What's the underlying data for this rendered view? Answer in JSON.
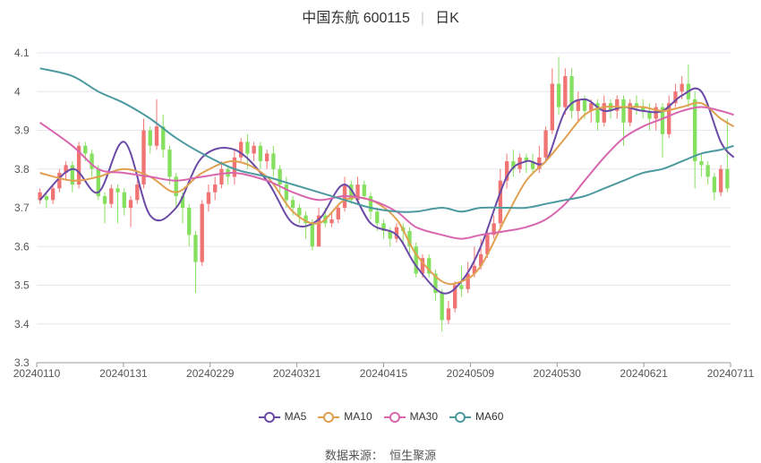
{
  "header": {
    "stock_name": "中国东航 600115",
    "period": "日K"
  },
  "source": {
    "label": "数据来源：",
    "value": "恒生聚源"
  },
  "colors": {
    "up": "#f07474",
    "down": "#86e05f",
    "MA5": "#6a4aa6",
    "MA10": "#e0a050",
    "MA30": "#d865ae",
    "MA60": "#4c9aa0",
    "grid": "#e6e6f0"
  },
  "chart_data": {
    "type": "candlestick",
    "ylim": [
      3.3,
      4.1
    ],
    "yticks": [
      "3.3",
      "3.4",
      "3.5",
      "3.6",
      "3.7",
      "3.8",
      "3.9",
      "4",
      "4.1"
    ],
    "xticks": [
      "20240110",
      "20240131",
      "20240229",
      "20240321",
      "20240415",
      "20240509",
      "20240530",
      "20240621",
      "20240711"
    ],
    "legend": [
      "MA5",
      "MA10",
      "MA30",
      "MA60"
    ],
    "candles": [
      [
        3.72,
        3.74,
        3.71,
        3.75
      ],
      [
        3.73,
        3.72,
        3.7,
        3.74
      ],
      [
        3.72,
        3.75,
        3.71,
        3.76
      ],
      [
        3.75,
        3.79,
        3.74,
        3.8
      ],
      [
        3.79,
        3.81,
        3.77,
        3.82
      ],
      [
        3.81,
        3.76,
        3.74,
        3.82
      ],
      [
        3.76,
        3.86,
        3.75,
        3.87
      ],
      [
        3.86,
        3.84,
        3.82,
        3.87
      ],
      [
        3.84,
        3.8,
        3.78,
        3.85
      ],
      [
        3.8,
        3.73,
        3.72,
        3.81
      ],
      [
        3.73,
        3.71,
        3.66,
        3.74
      ],
      [
        3.71,
        3.75,
        3.7,
        3.76
      ],
      [
        3.75,
        3.74,
        3.66,
        3.76
      ],
      [
        3.74,
        3.7,
        3.68,
        3.75
      ],
      [
        3.7,
        3.72,
        3.65,
        3.73
      ],
      [
        3.72,
        3.76,
        3.71,
        3.77
      ],
      [
        3.76,
        3.9,
        3.75,
        3.93
      ],
      [
        3.9,
        3.86,
        3.84,
        3.91
      ],
      [
        3.86,
        3.91,
        3.85,
        3.98
      ],
      [
        3.91,
        3.85,
        3.83,
        3.94
      ],
      [
        3.85,
        3.78,
        3.76,
        3.86
      ],
      [
        3.78,
        3.73,
        3.7,
        3.79
      ],
      [
        3.73,
        3.7,
        3.66,
        3.74
      ],
      [
        3.7,
        3.63,
        3.6,
        3.71
      ],
      [
        3.63,
        3.56,
        3.48,
        3.64
      ],
      [
        3.56,
        3.71,
        3.55,
        3.72
      ],
      [
        3.71,
        3.74,
        3.69,
        3.76
      ],
      [
        3.74,
        3.76,
        3.72,
        3.78
      ],
      [
        3.76,
        3.8,
        3.75,
        3.82
      ],
      [
        3.8,
        3.78,
        3.76,
        3.81
      ],
      [
        3.78,
        3.83,
        3.76,
        3.85
      ],
      [
        3.83,
        3.87,
        3.82,
        3.88
      ],
      [
        3.87,
        3.84,
        3.8,
        3.89
      ],
      [
        3.84,
        3.86,
        3.82,
        3.87
      ],
      [
        3.86,
        3.82,
        3.8,
        3.87
      ],
      [
        3.82,
        3.84,
        3.8,
        3.85
      ],
      [
        3.84,
        3.8,
        3.78,
        3.86
      ],
      [
        3.8,
        3.76,
        3.74,
        3.81
      ],
      [
        3.76,
        3.72,
        3.7,
        3.78
      ],
      [
        3.72,
        3.7,
        3.68,
        3.73
      ],
      [
        3.7,
        3.68,
        3.66,
        3.71
      ],
      [
        3.68,
        3.66,
        3.62,
        3.69
      ],
      [
        3.66,
        3.6,
        3.59,
        3.67
      ],
      [
        3.6,
        3.68,
        3.6,
        3.7
      ],
      [
        3.68,
        3.66,
        3.65,
        3.7
      ],
      [
        3.66,
        3.67,
        3.65,
        3.69
      ],
      [
        3.67,
        3.7,
        3.66,
        3.71
      ],
      [
        3.7,
        3.76,
        3.69,
        3.78
      ],
      [
        3.76,
        3.72,
        3.71,
        3.77
      ],
      [
        3.72,
        3.76,
        3.71,
        3.78
      ],
      [
        3.76,
        3.73,
        3.72,
        3.77
      ],
      [
        3.73,
        3.69,
        3.67,
        3.74
      ],
      [
        3.69,
        3.66,
        3.64,
        3.7
      ],
      [
        3.66,
        3.64,
        3.62,
        3.67
      ],
      [
        3.64,
        3.62,
        3.6,
        3.65
      ],
      [
        3.62,
        3.65,
        3.61,
        3.66
      ],
      [
        3.65,
        3.64,
        3.61,
        3.66
      ],
      [
        3.64,
        3.6,
        3.58,
        3.65
      ],
      [
        3.6,
        3.53,
        3.52,
        3.61
      ],
      [
        3.53,
        3.57,
        3.52,
        3.58
      ],
      [
        3.57,
        3.53,
        3.52,
        3.58
      ],
      [
        3.53,
        3.48,
        3.46,
        3.54
      ],
      [
        3.48,
        3.41,
        3.38,
        3.49
      ],
      [
        3.41,
        3.44,
        3.4,
        3.46
      ],
      [
        3.44,
        3.5,
        3.43,
        3.51
      ],
      [
        3.5,
        3.49,
        3.47,
        3.55
      ],
      [
        3.49,
        3.53,
        3.48,
        3.56
      ],
      [
        3.53,
        3.55,
        3.52,
        3.6
      ],
      [
        3.55,
        3.58,
        3.54,
        3.62
      ],
      [
        3.58,
        3.63,
        3.57,
        3.65
      ],
      [
        3.63,
        3.66,
        3.62,
        3.68
      ],
      [
        3.66,
        3.77,
        3.65,
        3.8
      ],
      [
        3.77,
        3.82,
        3.75,
        3.84
      ],
      [
        3.82,
        3.8,
        3.78,
        3.85
      ],
      [
        3.8,
        3.83,
        3.79,
        3.84
      ],
      [
        3.83,
        3.82,
        3.79,
        3.84
      ],
      [
        3.82,
        3.8,
        3.79,
        3.84
      ],
      [
        3.8,
        3.83,
        3.79,
        3.86
      ],
      [
        3.83,
        3.9,
        3.82,
        3.91
      ],
      [
        3.9,
        4.02,
        3.89,
        4.06
      ],
      [
        4.02,
        3.96,
        3.94,
        4.09
      ],
      [
        3.96,
        4.04,
        3.94,
        4.06
      ],
      [
        4.04,
        3.95,
        3.93,
        4.06
      ],
      [
        3.95,
        3.98,
        3.92,
        4.0
      ],
      [
        3.98,
        3.95,
        3.93,
        3.99
      ],
      [
        3.95,
        3.97,
        3.92,
        3.98
      ],
      [
        3.97,
        3.92,
        3.9,
        3.98
      ],
      [
        3.92,
        3.97,
        3.91,
        3.99
      ],
      [
        3.97,
        3.95,
        3.93,
        3.98
      ],
      [
        3.95,
        3.98,
        3.93,
        3.99
      ],
      [
        3.98,
        3.92,
        3.86,
        3.99
      ],
      [
        3.92,
        3.97,
        3.91,
        3.98
      ],
      [
        3.97,
        3.96,
        3.94,
        3.99
      ],
      [
        3.96,
        3.95,
        3.93,
        3.98
      ],
      [
        3.95,
        3.93,
        3.9,
        3.97
      ],
      [
        3.93,
        3.96,
        3.9,
        3.97
      ],
      [
        3.96,
        3.89,
        3.83,
        3.97
      ],
      [
        3.89,
        3.97,
        3.88,
        3.99
      ],
      [
        3.97,
        4.0,
        3.96,
        4.02
      ],
      [
        4.0,
        4.02,
        3.98,
        4.04
      ],
      [
        4.02,
        3.98,
        3.96,
        4.07
      ],
      [
        3.98,
        3.82,
        3.75,
        4.0
      ],
      [
        3.82,
        3.81,
        3.78,
        3.84
      ],
      [
        3.81,
        3.78,
        3.76,
        3.82
      ],
      [
        3.78,
        3.74,
        3.72,
        3.79
      ],
      [
        3.74,
        3.8,
        3.73,
        3.81
      ],
      [
        3.8,
        3.75,
        3.74,
        3.93
      ]
    ],
    "series": [
      {
        "name": "MA5",
        "values": [
          [
            0,
            3.72
          ],
          [
            5,
            3.8
          ],
          [
            9,
            3.74
          ],
          [
            13,
            3.87
          ],
          [
            17,
            3.68
          ],
          [
            21,
            3.7
          ],
          [
            25,
            3.83
          ],
          [
            30,
            3.85
          ],
          [
            35,
            3.77
          ],
          [
            39,
            3.66
          ],
          [
            43,
            3.67
          ],
          [
            47,
            3.76
          ],
          [
            51,
            3.66
          ],
          [
            55,
            3.63
          ],
          [
            58,
            3.55
          ],
          [
            62,
            3.48
          ],
          [
            65,
            3.51
          ],
          [
            68,
            3.6
          ],
          [
            72,
            3.78
          ],
          [
            75,
            3.82
          ],
          [
            78,
            3.82
          ],
          [
            81,
            3.95
          ],
          [
            84,
            3.98
          ],
          [
            87,
            3.95
          ],
          [
            90,
            3.96
          ],
          [
            93,
            3.95
          ],
          [
            96,
            3.95
          ],
          [
            99,
            3.99
          ],
          [
            102,
            4.0
          ],
          [
            105,
            3.87
          ],
          [
            107,
            3.83
          ]
        ]
      },
      {
        "name": "MA10",
        "values": [
          [
            0,
            3.79
          ],
          [
            5,
            3.77
          ],
          [
            9,
            3.78
          ],
          [
            13,
            3.8
          ],
          [
            17,
            3.78
          ],
          [
            21,
            3.74
          ],
          [
            25,
            3.79
          ],
          [
            30,
            3.82
          ],
          [
            35,
            3.78
          ],
          [
            39,
            3.69
          ],
          [
            43,
            3.66
          ],
          [
            47,
            3.72
          ],
          [
            51,
            3.72
          ],
          [
            55,
            3.67
          ],
          [
            58,
            3.58
          ],
          [
            62,
            3.51
          ],
          [
            65,
            3.51
          ],
          [
            68,
            3.55
          ],
          [
            72,
            3.68
          ],
          [
            75,
            3.77
          ],
          [
            78,
            3.82
          ],
          [
            81,
            3.88
          ],
          [
            84,
            3.94
          ],
          [
            87,
            3.96
          ],
          [
            90,
            3.96
          ],
          [
            93,
            3.96
          ],
          [
            96,
            3.95
          ],
          [
            99,
            3.96
          ],
          [
            102,
            3.97
          ],
          [
            105,
            3.93
          ],
          [
            107,
            3.91
          ]
        ]
      },
      {
        "name": "MA30",
        "values": [
          [
            0,
            3.92
          ],
          [
            5,
            3.86
          ],
          [
            9,
            3.8
          ],
          [
            13,
            3.79
          ],
          [
            17,
            3.78
          ],
          [
            21,
            3.77
          ],
          [
            25,
            3.78
          ],
          [
            30,
            3.79
          ],
          [
            35,
            3.77
          ],
          [
            39,
            3.74
          ],
          [
            43,
            3.72
          ],
          [
            47,
            3.73
          ],
          [
            51,
            3.72
          ],
          [
            55,
            3.69
          ],
          [
            58,
            3.65
          ],
          [
            62,
            3.63
          ],
          [
            65,
            3.62
          ],
          [
            68,
            3.63
          ],
          [
            72,
            3.64
          ],
          [
            75,
            3.65
          ],
          [
            78,
            3.67
          ],
          [
            81,
            3.71
          ],
          [
            84,
            3.77
          ],
          [
            87,
            3.83
          ],
          [
            90,
            3.88
          ],
          [
            93,
            3.91
          ],
          [
            96,
            3.93
          ],
          [
            99,
            3.95
          ],
          [
            102,
            3.96
          ],
          [
            105,
            3.95
          ],
          [
            107,
            3.94
          ]
        ]
      },
      {
        "name": "MA60",
        "values": [
          [
            0,
            4.06
          ],
          [
            5,
            4.04
          ],
          [
            9,
            4.0
          ],
          [
            13,
            3.97
          ],
          [
            17,
            3.93
          ],
          [
            21,
            3.88
          ],
          [
            25,
            3.84
          ],
          [
            30,
            3.8
          ],
          [
            35,
            3.78
          ],
          [
            39,
            3.76
          ],
          [
            43,
            3.74
          ],
          [
            47,
            3.72
          ],
          [
            51,
            3.7
          ],
          [
            55,
            3.69
          ],
          [
            58,
            3.69
          ],
          [
            62,
            3.7
          ],
          [
            65,
            3.69
          ],
          [
            68,
            3.7
          ],
          [
            72,
            3.7
          ],
          [
            75,
            3.7
          ],
          [
            78,
            3.71
          ],
          [
            81,
            3.72
          ],
          [
            84,
            3.73
          ],
          [
            87,
            3.75
          ],
          [
            90,
            3.77
          ],
          [
            93,
            3.79
          ],
          [
            96,
            3.8
          ],
          [
            99,
            3.82
          ],
          [
            102,
            3.84
          ],
          [
            105,
            3.85
          ],
          [
            107,
            3.86
          ]
        ]
      }
    ]
  }
}
